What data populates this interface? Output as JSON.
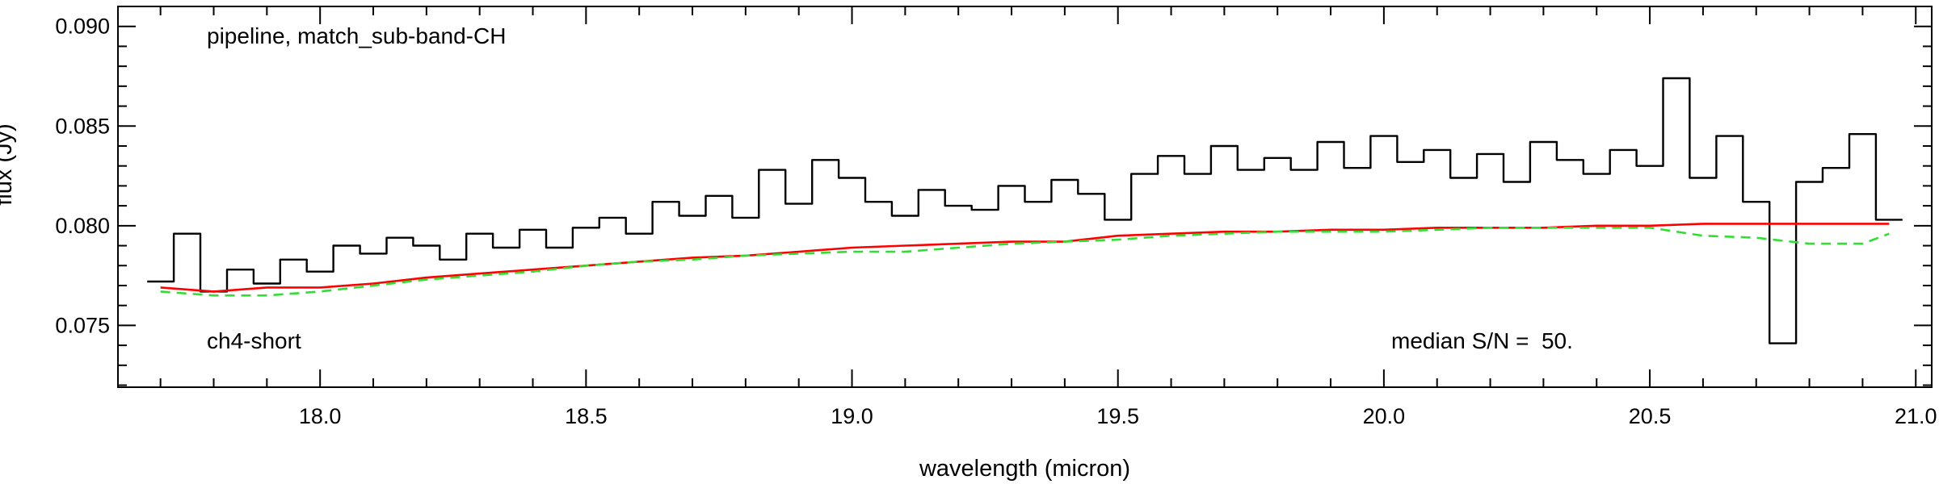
{
  "chart_data": {
    "type": "line",
    "xlabel": "wavelength (micron)",
    "ylabel": "flux (Jy)",
    "xlim": [
      17.62,
      21.03
    ],
    "ylim": [
      0.0719,
      0.091
    ],
    "x_ticks": [
      18.0,
      18.5,
      19.0,
      19.5,
      20.0,
      20.5,
      21.0
    ],
    "x_tick_labels": [
      "18.0",
      "18.5",
      "19.0",
      "19.5",
      "20.0",
      "20.5",
      "21.0"
    ],
    "y_ticks": [
      0.075,
      0.08,
      0.085,
      0.09
    ],
    "y_tick_labels": [
      "0.075",
      "0.080",
      "0.085",
      "0.090"
    ],
    "annotations": {
      "top_left": "pipeline, match_sub-band-CH",
      "bottom_left": "ch4-short",
      "bottom_right": "median S/N =  50."
    },
    "grid": false,
    "series": [
      {
        "color": "#000000",
        "style": "steps",
        "x": [
          17.7,
          17.75,
          17.8,
          17.85,
          17.9,
          17.95,
          18.0,
          18.05,
          18.1,
          18.15,
          18.2,
          18.25,
          18.3,
          18.35,
          18.4,
          18.45,
          18.5,
          18.55,
          18.6,
          18.65,
          18.7,
          18.75,
          18.8,
          18.85,
          18.9,
          18.95,
          19.0,
          19.05,
          19.1,
          19.15,
          19.2,
          19.25,
          19.3,
          19.35,
          19.4,
          19.45,
          19.5,
          19.55,
          19.6,
          19.65,
          19.7,
          19.75,
          19.8,
          19.85,
          19.9,
          19.95,
          20.0,
          20.05,
          20.1,
          20.15,
          20.2,
          20.25,
          20.3,
          20.35,
          20.4,
          20.45,
          20.5,
          20.55,
          20.6,
          20.65,
          20.7,
          20.75,
          20.8,
          20.85,
          20.9,
          20.95
        ],
        "values": [
          0.0772,
          0.0796,
          0.0767,
          0.0778,
          0.0771,
          0.0783,
          0.0777,
          0.079,
          0.0786,
          0.0794,
          0.079,
          0.0783,
          0.0796,
          0.0789,
          0.0798,
          0.0789,
          0.0799,
          0.0804,
          0.0796,
          0.0812,
          0.0805,
          0.0815,
          0.0804,
          0.0828,
          0.0811,
          0.0833,
          0.0824,
          0.0812,
          0.0805,
          0.0818,
          0.081,
          0.0808,
          0.082,
          0.0812,
          0.0823,
          0.0816,
          0.0803,
          0.0826,
          0.0835,
          0.0826,
          0.084,
          0.0828,
          0.0834,
          0.0828,
          0.0842,
          0.0829,
          0.0845,
          0.0832,
          0.0838,
          0.0824,
          0.0836,
          0.0822,
          0.0842,
          0.0833,
          0.0826,
          0.0838,
          0.083,
          0.0874,
          0.0824,
          0.0845,
          0.0812,
          0.0741,
          0.0822,
          0.0829,
          0.0846,
          0.0803
        ]
      },
      {
        "color": "#ff0000",
        "style": "solid",
        "x": [
          17.7,
          17.8,
          17.9,
          18.0,
          18.1,
          18.2,
          18.3,
          18.4,
          18.5,
          18.6,
          18.7,
          18.8,
          18.9,
          19.0,
          19.1,
          19.2,
          19.3,
          19.4,
          19.5,
          19.6,
          19.7,
          19.8,
          19.9,
          20.0,
          20.1,
          20.2,
          20.3,
          20.4,
          20.5,
          20.6,
          20.7,
          20.8,
          20.9,
          20.95
        ],
        "values": [
          0.0769,
          0.0767,
          0.0769,
          0.0769,
          0.0771,
          0.0774,
          0.0776,
          0.0778,
          0.078,
          0.0782,
          0.0784,
          0.0785,
          0.0787,
          0.0789,
          0.079,
          0.0791,
          0.0792,
          0.0792,
          0.0795,
          0.0796,
          0.0797,
          0.0797,
          0.0798,
          0.0798,
          0.0799,
          0.0799,
          0.0799,
          0.08,
          0.08,
          0.0801,
          0.0801,
          0.0801,
          0.0801,
          0.0801
        ]
      },
      {
        "color": "#33dd33",
        "style": "dashed",
        "x": [
          17.7,
          17.8,
          17.9,
          18.0,
          18.1,
          18.2,
          18.3,
          18.4,
          18.5,
          18.6,
          18.7,
          18.8,
          18.9,
          19.0,
          19.1,
          19.2,
          19.3,
          19.4,
          19.5,
          19.6,
          19.7,
          19.8,
          19.9,
          20.0,
          20.1,
          20.2,
          20.3,
          20.4,
          20.5,
          20.6,
          20.7,
          20.8,
          20.9,
          20.95
        ],
        "values": [
          0.0767,
          0.0765,
          0.0765,
          0.0767,
          0.077,
          0.0773,
          0.0775,
          0.0777,
          0.078,
          0.0782,
          0.0783,
          0.0785,
          0.0786,
          0.0787,
          0.0787,
          0.0789,
          0.0791,
          0.0792,
          0.0793,
          0.0795,
          0.0796,
          0.0797,
          0.0797,
          0.0797,
          0.0798,
          0.0799,
          0.0799,
          0.0799,
          0.0799,
          0.0795,
          0.0794,
          0.0791,
          0.0791,
          0.0796
        ]
      }
    ]
  }
}
